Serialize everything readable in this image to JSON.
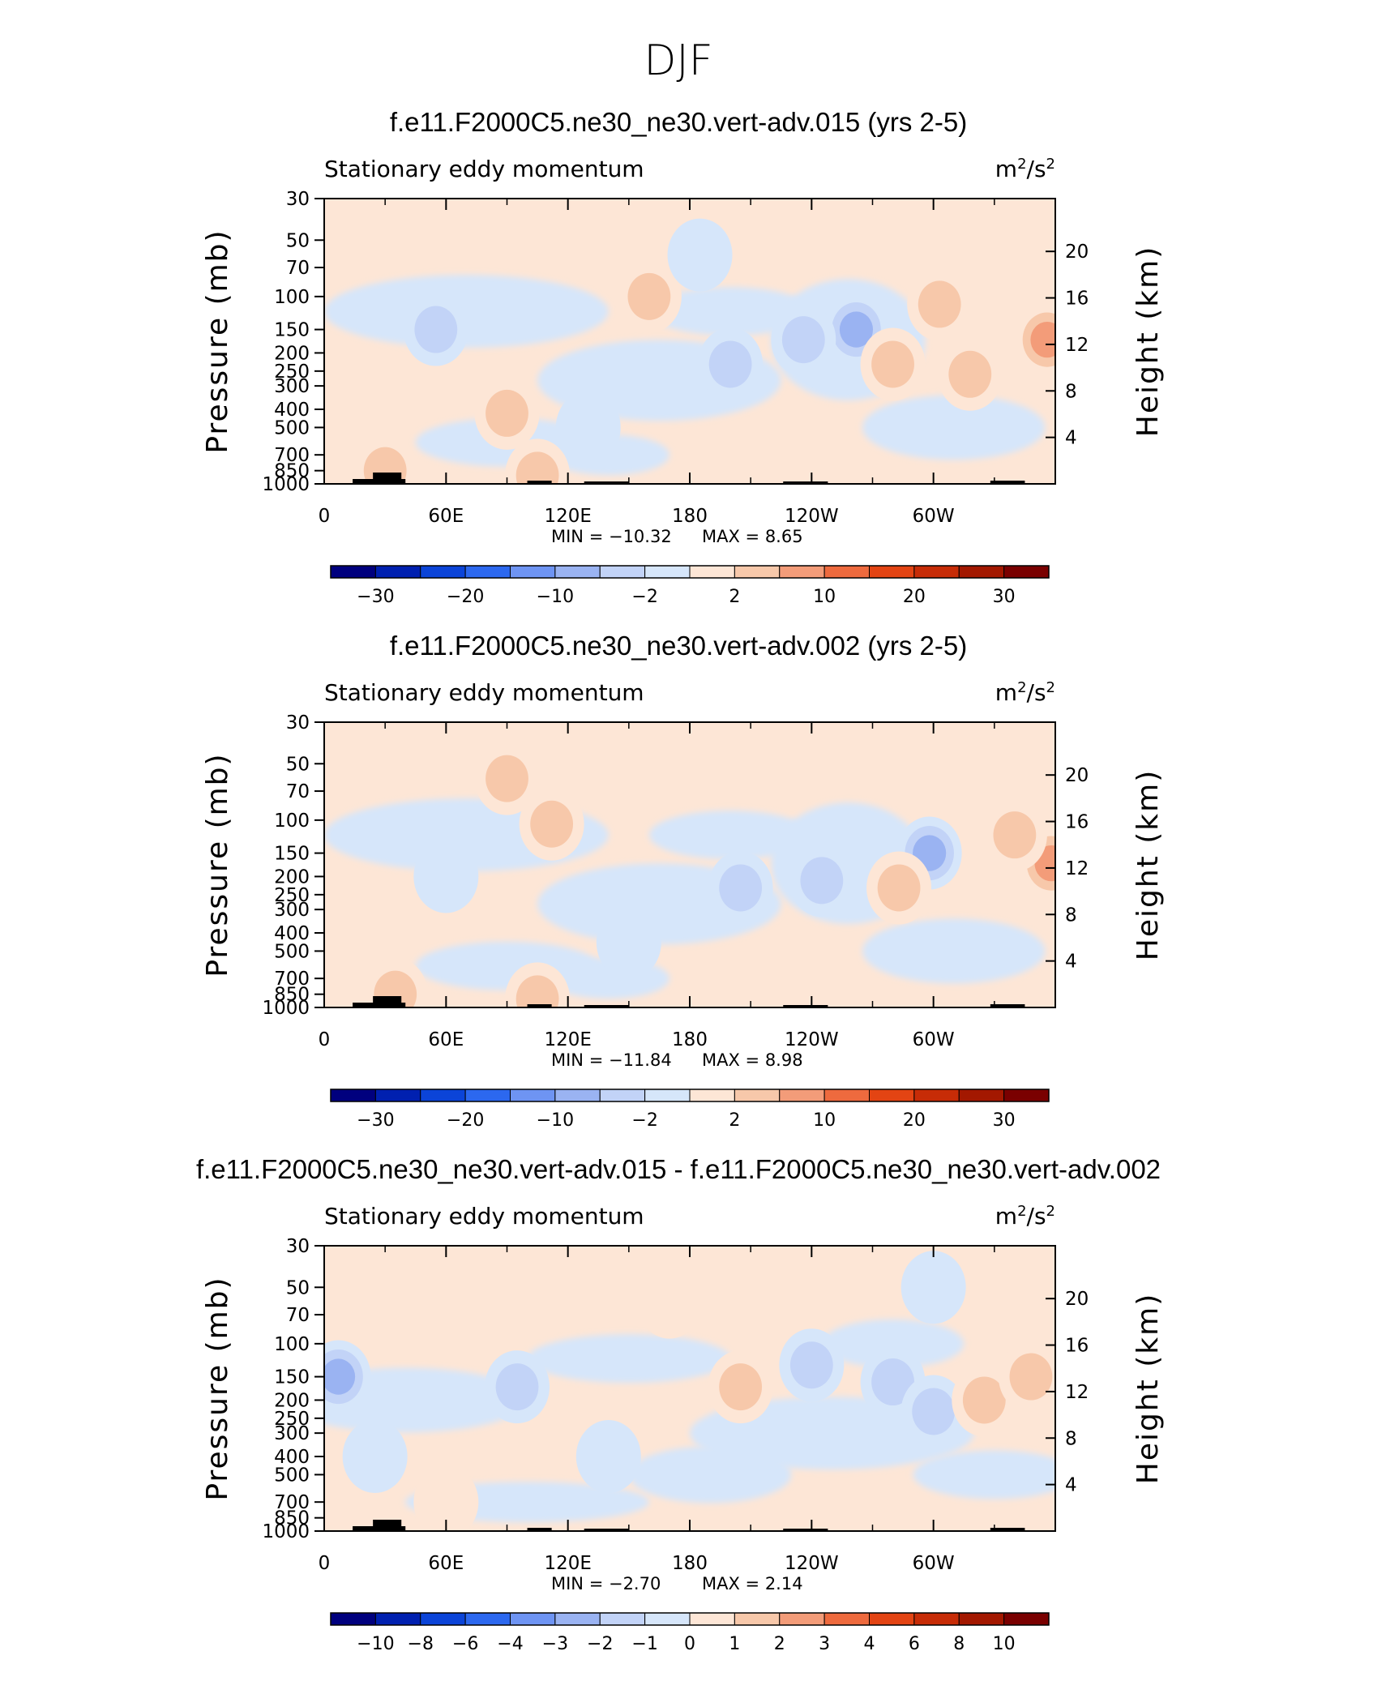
{
  "figure_title": "DJF",
  "colors": {
    "scale": [
      "#00007e",
      "#0020b0",
      "#0b44d8",
      "#2c68ef",
      "#6e94f3",
      "#9ab3f2",
      "#c2d3f7",
      "#d6e6fa",
      "#fde6d6",
      "#f7c8aa",
      "#f39c79",
      "#ee6a3e",
      "#e34413",
      "#c72c07",
      "#a31800",
      "#7a0000"
    ],
    "frame": "#000000",
    "topography": "#000000"
  },
  "chart_data": [
    {
      "type": "contour",
      "title": "f.e11.F2000C5.ne30_ne30.vert-adv.015 (yrs 2-5)",
      "variable_label": "Stationary eddy momentum",
      "units_label": "m2/s2",
      "units_base": "m",
      "units_exp1": "2",
      "units_sep": "/s",
      "units_exp2": "2",
      "ylabel": "Pressure (mb)",
      "y2label": "Height (km)",
      "x_ticks": [
        "0",
        "60E",
        "120E",
        "180",
        "120W",
        "60W"
      ],
      "y_ticks": [
        "30",
        "50",
        "70",
        "100",
        "150",
        "200",
        "250",
        "300",
        "400",
        "500",
        "700",
        "850",
        "1000"
      ],
      "y2_ticks": [
        "20",
        "16",
        "12",
        "8",
        "4"
      ],
      "min_label": "MIN = −10.32",
      "max_label": "MAX =    8.65",
      "min": -10.32,
      "max": 8.65,
      "levels": [
        -35,
        -30,
        -25,
        -20,
        -15,
        -10,
        -5,
        -2,
        0,
        2,
        5,
        10,
        15,
        20,
        25,
        30,
        35
      ],
      "colorbar_labels": [
        "−30",
        "−20",
        "−10",
        "−2",
        "2",
        "10",
        "20",
        "30"
      ],
      "features": [
        {
          "lon": 356,
          "p": 170,
          "value": 6
        },
        {
          "lon": 262,
          "p": 150,
          "value": -9
        },
        {
          "lon": 200,
          "p": 230,
          "value": -4
        },
        {
          "lon": 236,
          "p": 170,
          "value": -3
        },
        {
          "lon": 303,
          "p": 110,
          "value": 4
        },
        {
          "lon": 318,
          "p": 260,
          "value": 3
        },
        {
          "lon": 280,
          "p": 230,
          "value": 4
        },
        {
          "lon": 55,
          "p": 150,
          "value": -3
        },
        {
          "lon": 160,
          "p": 100,
          "value": 3
        },
        {
          "lon": 90,
          "p": 420,
          "value": 2
        },
        {
          "lon": 130,
          "p": 500,
          "value": -2
        },
        {
          "lon": 30,
          "p": 850,
          "value": 3
        },
        {
          "lon": 105,
          "p": 900,
          "value": 4
        },
        {
          "lon": 185,
          "p": 60,
          "value": -2
        }
      ]
    },
    {
      "type": "contour",
      "title": "f.e11.F2000C5.ne30_ne30.vert-adv.002 (yrs 2-5)",
      "variable_label": "Stationary eddy momentum",
      "units_label": "m2/s2",
      "units_base": "m",
      "units_exp1": "2",
      "units_sep": "/s",
      "units_exp2": "2",
      "ylabel": "Pressure (mb)",
      "y2label": "Height (km)",
      "x_ticks": [
        "0",
        "60E",
        "120E",
        "180",
        "120W",
        "60W"
      ],
      "y_ticks": [
        "30",
        "50",
        "70",
        "100",
        "150",
        "200",
        "250",
        "300",
        "400",
        "500",
        "700",
        "850",
        "1000"
      ],
      "y2_ticks": [
        "20",
        "16",
        "12",
        "8",
        "4"
      ],
      "min_label": "MIN = −11.84",
      "max_label": "MAX =    8.98",
      "min": -11.84,
      "max": 8.98,
      "levels": [
        -35,
        -30,
        -25,
        -20,
        -15,
        -10,
        -5,
        -2,
        0,
        2,
        5,
        10,
        15,
        20,
        25,
        30,
        35
      ],
      "colorbar_labels": [
        "−30",
        "−20",
        "−10",
        "−2",
        "2",
        "10",
        "20",
        "30"
      ],
      "features": [
        {
          "lon": 358,
          "p": 170,
          "value": 6
        },
        {
          "lon": 298,
          "p": 150,
          "value": -10
        },
        {
          "lon": 205,
          "p": 230,
          "value": -4
        },
        {
          "lon": 245,
          "p": 210,
          "value": -3
        },
        {
          "lon": 283,
          "p": 230,
          "value": 4
        },
        {
          "lon": 340,
          "p": 120,
          "value": 3
        },
        {
          "lon": 112,
          "p": 105,
          "value": 3
        },
        {
          "lon": 60,
          "p": 200,
          "value": -2
        },
        {
          "lon": 150,
          "p": 450,
          "value": -2
        },
        {
          "lon": 35,
          "p": 850,
          "value": 3
        },
        {
          "lon": 105,
          "p": 900,
          "value": 4
        },
        {
          "lon": 90,
          "p": 60,
          "value": 2
        }
      ]
    },
    {
      "type": "contour",
      "title": "f.e11.F2000C5.ne30_ne30.vert-adv.015 - f.e11.F2000C5.ne30_ne30.vert-adv.002",
      "variable_label": "Stationary eddy momentum",
      "units_label": "m2/s2",
      "units_base": "m",
      "units_exp1": "2",
      "units_sep": "/s",
      "units_exp2": "2",
      "ylabel": "Pressure (mb)",
      "y2label": "Height (km)",
      "x_ticks": [
        "0",
        "60E",
        "120E",
        "180",
        "120W",
        "60W"
      ],
      "y_ticks": [
        "30",
        "50",
        "70",
        "100",
        "150",
        "200",
        "250",
        "300",
        "400",
        "500",
        "700",
        "850",
        "1000"
      ],
      "y2_ticks": [
        "20",
        "16",
        "12",
        "8",
        "4"
      ],
      "min_label": "MIN =    −2.70",
      "max_label": "MAX =    2.14",
      "min": -2.7,
      "max": 2.14,
      "levels": [
        -12,
        -10,
        -8,
        -6,
        -4,
        -3,
        -2,
        -1,
        0,
        1,
        2,
        3,
        4,
        6,
        8,
        10,
        12
      ],
      "colorbar_labels": [
        "−10",
        "−8",
        "−6",
        "−4",
        "−3",
        "−2",
        "−1",
        "0",
        "1",
        "2",
        "3",
        "4",
        "6",
        "8",
        "10"
      ],
      "features": [
        {
          "lon": 7,
          "p": 150,
          "value": -2.2
        },
        {
          "lon": 95,
          "p": 170,
          "value": -1.6
        },
        {
          "lon": 205,
          "p": 170,
          "value": 1.9
        },
        {
          "lon": 280,
          "p": 160,
          "value": -1.2
        },
        {
          "lon": 300,
          "p": 230,
          "value": -1.3
        },
        {
          "lon": 325,
          "p": 200,
          "value": 1.3
        },
        {
          "lon": 348,
          "p": 150,
          "value": 1.2
        },
        {
          "lon": 240,
          "p": 130,
          "value": -1.1
        },
        {
          "lon": 140,
          "p": 400,
          "value": -0.8
        },
        {
          "lon": 60,
          "p": 700,
          "value": 0.8
        },
        {
          "lon": 170,
          "p": 60,
          "value": 0.6
        },
        {
          "lon": 300,
          "p": 50,
          "value": -0.6
        },
        {
          "lon": 25,
          "p": 400,
          "value": -0.7
        }
      ]
    }
  ]
}
